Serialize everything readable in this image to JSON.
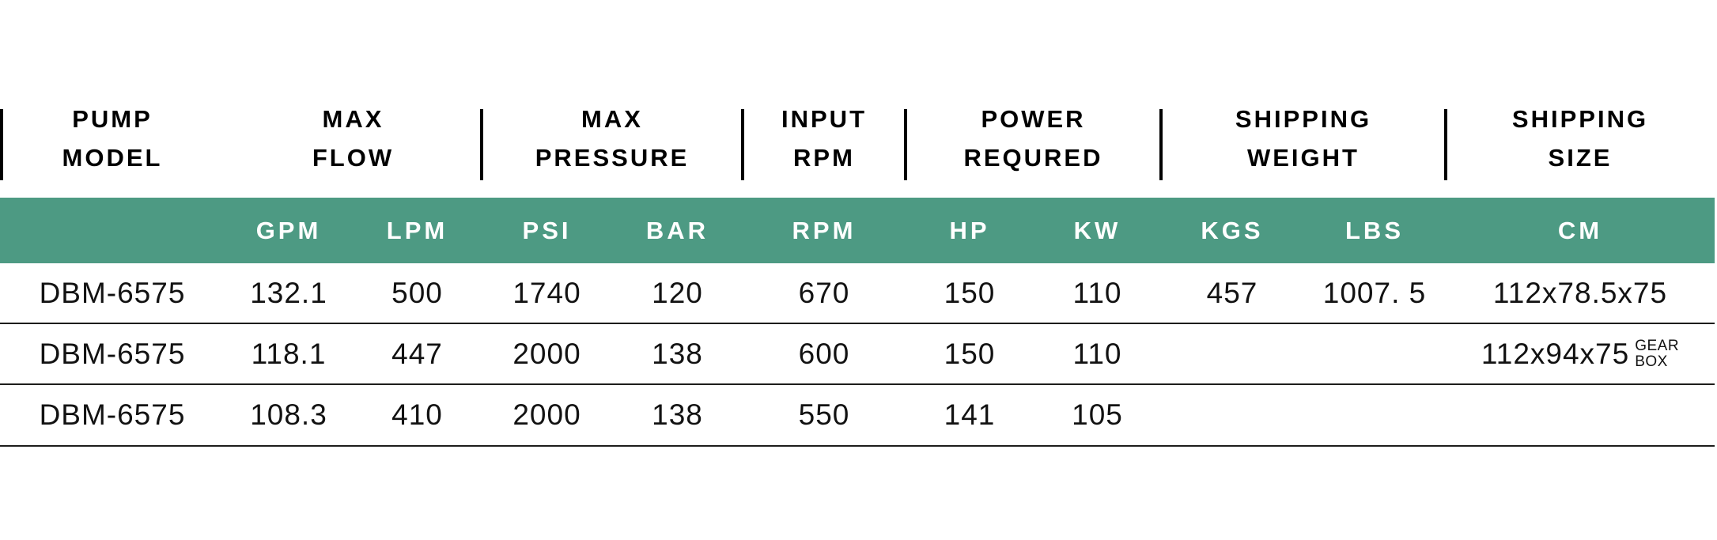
{
  "table": {
    "header_groups": [
      {
        "id": "pump-model",
        "line1": "PUMP",
        "line2": "MODEL"
      },
      {
        "id": "max-flow",
        "line1": "MAX",
        "line2": "FLOW"
      },
      {
        "id": "max-pressure",
        "line1": "MAX",
        "line2": "PRESSURE"
      },
      {
        "id": "input-rpm",
        "line1": "INPUT",
        "line2": "RPM"
      },
      {
        "id": "power-required",
        "line1": "POWER",
        "line2": "REQURED"
      },
      {
        "id": "shipping-weight",
        "line1": "SHIPPING",
        "line2": "WEIGHT"
      },
      {
        "id": "shipping-size",
        "line1": "SHIPPING",
        "line2": "SIZE"
      }
    ],
    "units": [
      "",
      "GPM",
      "LPM",
      "PSI",
      "BAR",
      "RPM",
      "HP",
      "KW",
      "KGS",
      "LBS",
      "CM"
    ],
    "rows": [
      {
        "cells": [
          "DBM-6575",
          "132.1",
          "500",
          "1740",
          "120",
          "670",
          "150",
          "110",
          "457",
          "1007. 5",
          "112x78.5x75"
        ]
      },
      {
        "cells": [
          "DBM-6575",
          "118.1",
          "447",
          "2000",
          "138",
          "600",
          "150",
          "110",
          "",
          "",
          "112x94x75"
        ],
        "note_line1": "GEAR",
        "note_line2": "BOX"
      },
      {
        "cells": [
          "DBM-6575",
          "108.3",
          "410",
          "2000",
          "138",
          "550",
          "141",
          "105",
          "",
          "",
          ""
        ]
      }
    ]
  },
  "colors": {
    "header_band_green": "#4d9a83",
    "text_black": "#000000",
    "row_line": "#1d1d1b",
    "unit_text_white": "#ffffff"
  }
}
